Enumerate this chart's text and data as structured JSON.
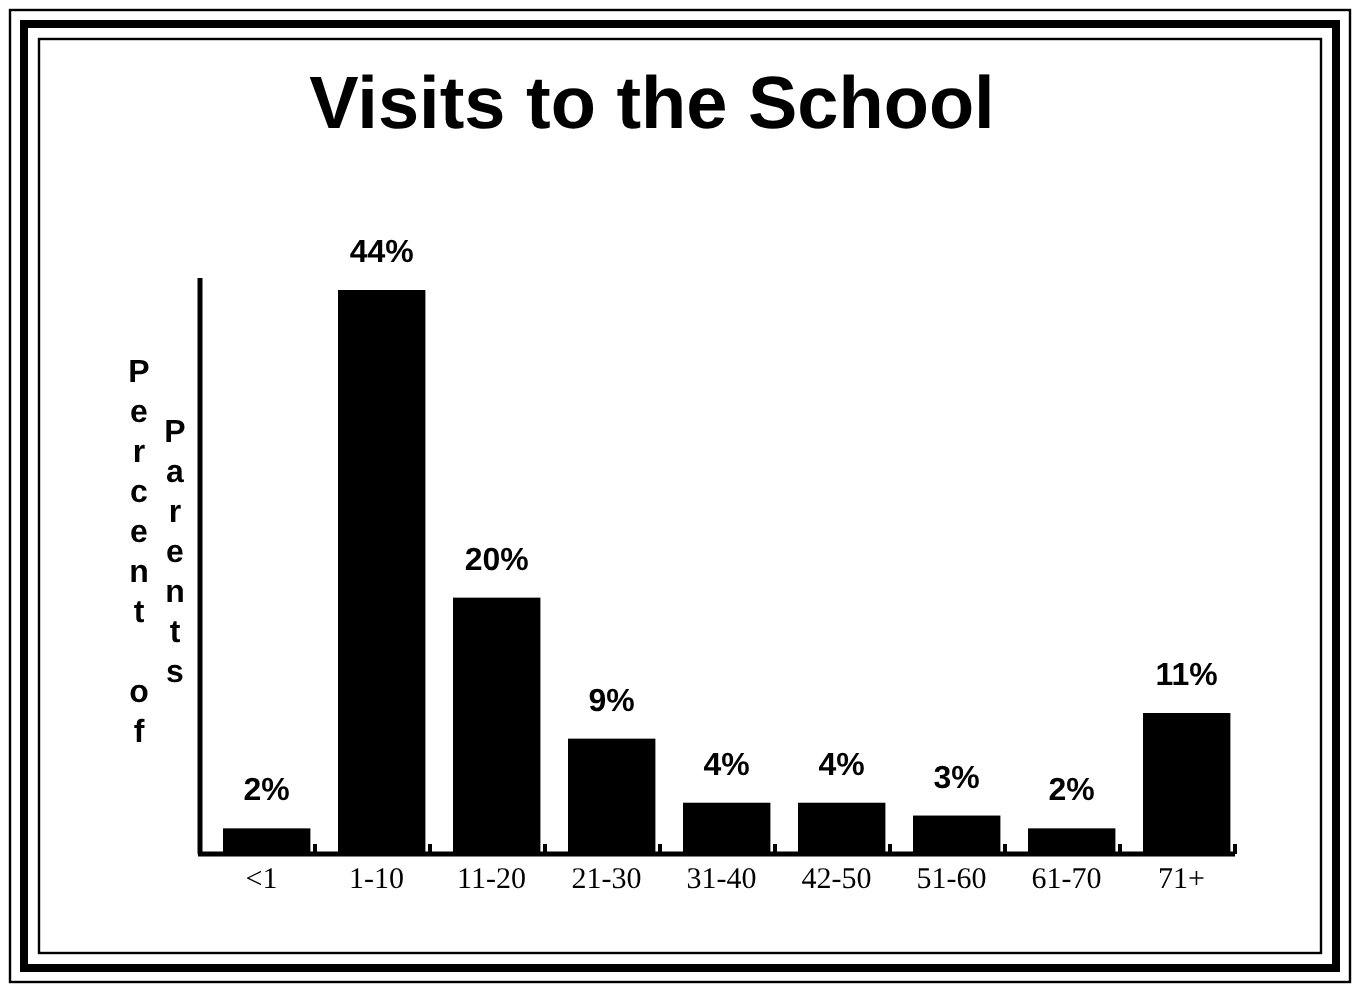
{
  "chart_data": {
    "type": "bar",
    "title": "Visits to the School",
    "ylabel": "Percent of Parents",
    "categories": [
      "<1",
      "1-10",
      "11-20",
      "21-30",
      "31-40",
      "42-50",
      "51-60",
      "61-70",
      "71+"
    ],
    "values": [
      2,
      44,
      20,
      9,
      4,
      4,
      3,
      2,
      11
    ],
    "color": "#000000",
    "value_labels": [
      "2%",
      "44%",
      "20%",
      "9%",
      "4%",
      "4%",
      "3%",
      "2%",
      "11%"
    ],
    "tick_labels": "x"
  }
}
